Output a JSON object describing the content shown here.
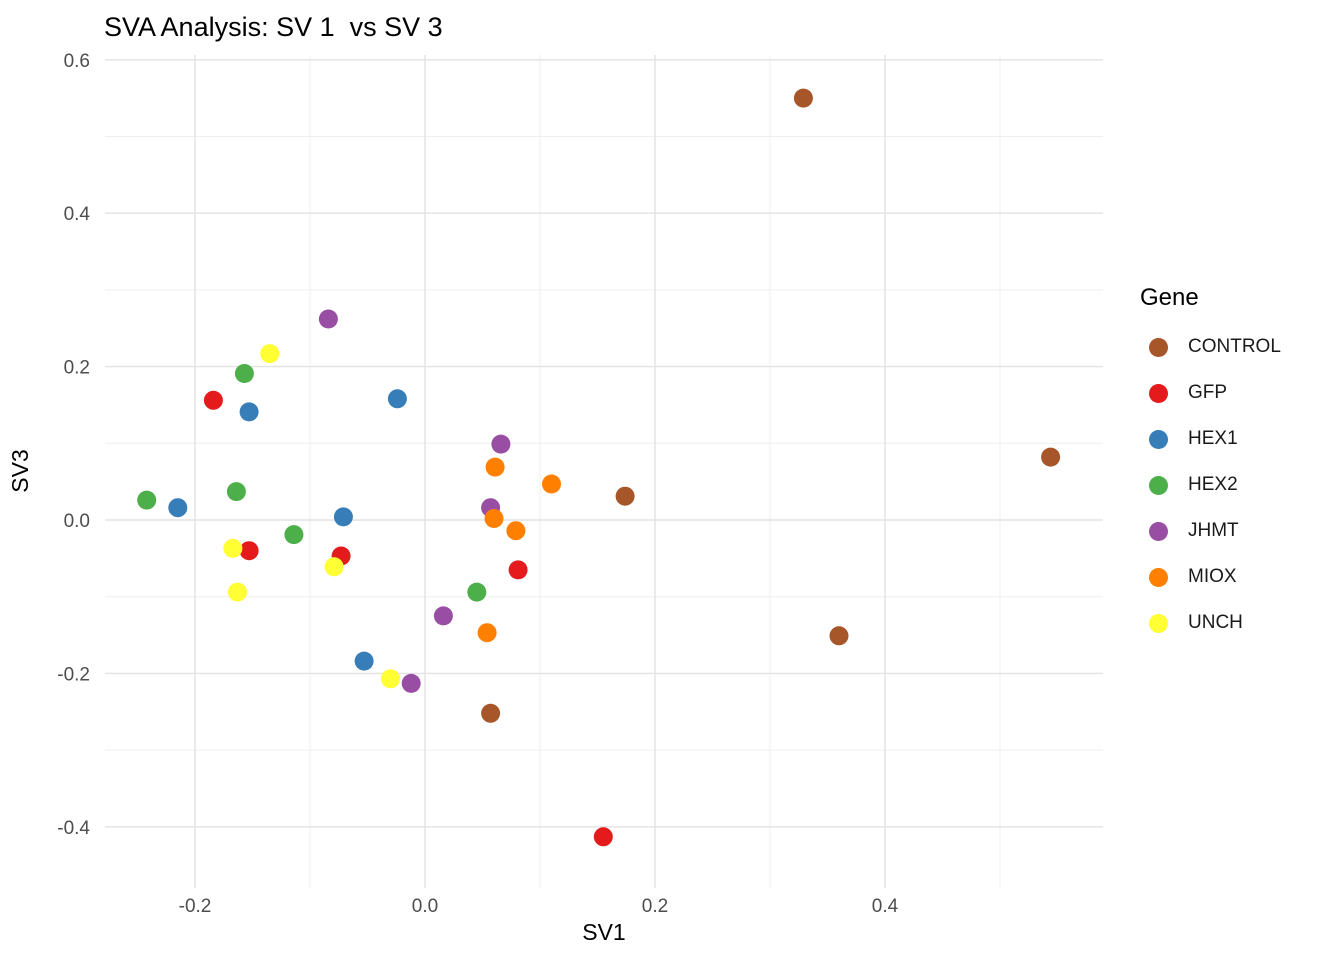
{
  "chart_data": {
    "type": "scatter",
    "title": "SVA Analysis: SV 1  vs SV 3",
    "xlabel": "SV1",
    "ylabel": "SV3",
    "xlim": [
      -0.28,
      0.59
    ],
    "ylim": [
      -0.48,
      0.6
    ],
    "grid": true,
    "background": "#ffffff",
    "major_grid_color": "#e2e2e2",
    "minor_grid_color": "#efefef",
    "x_ticks": [
      -0.2,
      0.0,
      0.2,
      0.4
    ],
    "x_tick_labels": [
      "-0.2",
      "0.0",
      "0.2",
      "0.4"
    ],
    "y_ticks": [
      -0.4,
      -0.2,
      0.0,
      0.2,
      0.4,
      0.6
    ],
    "y_tick_labels": [
      "-0.4",
      "-0.2",
      "0.0",
      "0.2",
      "0.4",
      "0.6"
    ],
    "x_minor": [
      -0.1,
      0.1,
      0.3,
      0.5
    ],
    "y_minor": [
      -0.3,
      -0.1,
      0.1,
      0.3,
      0.5
    ],
    "legend_title": "Gene",
    "legend_position": "right",
    "series": [
      {
        "name": "CONTROL",
        "color": "#A65628",
        "points": [
          [
            0.329,
            0.55
          ],
          [
            0.544,
            0.082
          ],
          [
            0.174,
            0.031
          ],
          [
            0.36,
            -0.151
          ],
          [
            0.057,
            -0.252
          ]
        ]
      },
      {
        "name": "GFP",
        "color": "#E41A1C",
        "points": [
          [
            -0.184,
            0.156
          ],
          [
            -0.153,
            -0.04
          ],
          [
            -0.073,
            -0.047
          ],
          [
            0.081,
            -0.065
          ],
          [
            0.155,
            -0.413
          ]
        ]
      },
      {
        "name": "HEX1",
        "color": "#377EB8",
        "points": [
          [
            -0.215,
            0.016
          ],
          [
            -0.153,
            0.141
          ],
          [
            -0.024,
            0.158
          ],
          [
            -0.071,
            0.004
          ],
          [
            -0.053,
            -0.184
          ]
        ]
      },
      {
        "name": "HEX2",
        "color": "#4DAF4A",
        "points": [
          [
            -0.242,
            0.026
          ],
          [
            -0.164,
            0.037
          ],
          [
            -0.157,
            0.191
          ],
          [
            -0.114,
            -0.019
          ],
          [
            0.045,
            -0.094
          ]
        ]
      },
      {
        "name": "JHMT",
        "color": "#984EA3",
        "points": [
          [
            -0.084,
            0.262
          ],
          [
            0.066,
            0.099
          ],
          [
            0.057,
            0.016
          ],
          [
            0.016,
            -0.125
          ],
          [
            -0.012,
            -0.213
          ]
        ]
      },
      {
        "name": "MIOX",
        "color": "#FF7F00",
        "points": [
          [
            0.061,
            0.069
          ],
          [
            0.11,
            0.047
          ],
          [
            0.06,
            0.002
          ],
          [
            0.079,
            -0.014
          ],
          [
            0.054,
            -0.147
          ]
        ]
      },
      {
        "name": "UNCH",
        "color": "#FFFF33",
        "points": [
          [
            -0.135,
            0.217
          ],
          [
            -0.167,
            -0.037
          ],
          [
            -0.163,
            -0.094
          ],
          [
            -0.079,
            -0.061
          ],
          [
            -0.03,
            -0.207
          ]
        ]
      }
    ]
  }
}
